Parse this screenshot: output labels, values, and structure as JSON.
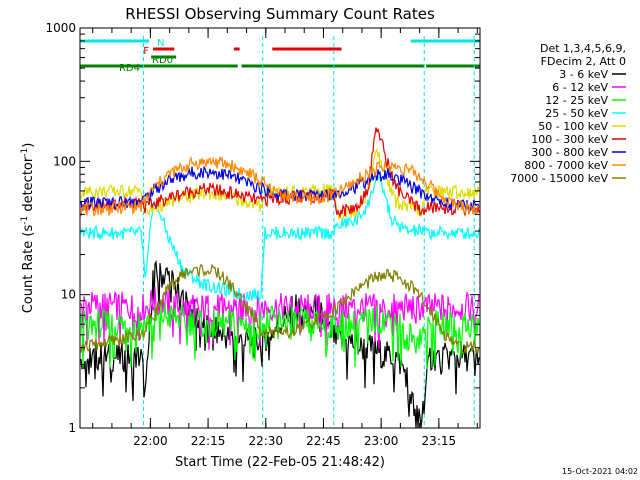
{
  "chart_data": {
    "type": "line",
    "title": "RHESSI Observing Summary Count Rates",
    "xlabel": "Start Time (22-Feb-05 21:48:42)",
    "ylabel": "Count Rate (s⁻¹ detector⁻¹)",
    "ylabel_main": "Count Rate (s",
    "ylabel_exp1": "-1",
    "ylabel_mid": " detector",
    "ylabel_exp2": "-1",
    "ylabel_end": ")",
    "x_unit": "minutes after 21:48:42",
    "xlim": [
      -7,
      97
    ],
    "ylim": [
      1,
      1000
    ],
    "y_scale": "log",
    "x_ticks": [
      {
        "value": 11.3,
        "label": "22:00"
      },
      {
        "value": 26.3,
        "label": "22:15"
      },
      {
        "value": 41.3,
        "label": "22:30"
      },
      {
        "value": 56.3,
        "label": "22:45"
      },
      {
        "value": 71.3,
        "label": "23:00"
      },
      {
        "value": 86.3,
        "label": "23:15"
      }
    ],
    "y_ticks": [
      {
        "value": 1,
        "label": "1"
      },
      {
        "value": 10,
        "label": "10"
      },
      {
        "value": 100,
        "label": "100"
      },
      {
        "value": 1000,
        "label": "1000"
      }
    ],
    "legend_header": [
      "Det 1,3,4,5,6,9,",
      "FDecim 2, Att 0"
    ],
    "legend_position": "right",
    "timestamp": "15-Oct-2021 04:02",
    "flags": {
      "N": {
        "label": "N",
        "color": "#00e5e5",
        "segments": [
          [
            -7,
            11
          ],
          [
            79,
            97
          ]
        ]
      },
      "F": {
        "label": "F",
        "color": "#e60000",
        "segments": [
          [
            12,
            17.5
          ],
          [
            33,
            34.5
          ],
          [
            43,
            61
          ]
        ]
      },
      "RD0": {
        "label": "RD0",
        "color": "#008000",
        "segments": [
          [
            11.5,
            18
          ]
        ]
      },
      "RD4": {
        "label": "RD4",
        "color": "#008000",
        "segments": [
          [
            -7,
            9.5
          ],
          [
            9.5,
            34
          ],
          [
            35,
            59
          ],
          [
            59,
            82.5
          ],
          [
            83,
            97
          ]
        ]
      }
    },
    "gap_lines": [
      [
        -7,
        -7
      ],
      [
        9.5,
        9.5
      ],
      [
        40.5,
        40.5
      ],
      [
        59,
        59
      ],
      [
        82.5,
        82.5
      ],
      [
        95.5,
        95.5
      ]
    ],
    "series": [
      {
        "name": "3 - 6 keV",
        "color": "#000000",
        "values": [
          [
            -7,
            3.4
          ],
          [
            9,
            3.4
          ],
          [
            10,
            1.6
          ],
          [
            12,
            14
          ],
          [
            16,
            14
          ],
          [
            20,
            9
          ],
          [
            25,
            6
          ],
          [
            30,
            5
          ],
          [
            35,
            4.5
          ],
          [
            40,
            4.5
          ],
          [
            44,
            5.5
          ],
          [
            48,
            8
          ],
          [
            52,
            7.5
          ],
          [
            55,
            8
          ],
          [
            57,
            5.5
          ],
          [
            60,
            4.5
          ],
          [
            63,
            4.5
          ],
          [
            66,
            4
          ],
          [
            69,
            4
          ],
          [
            72,
            3.5
          ],
          [
            75,
            3.5
          ],
          [
            78,
            2.5
          ],
          [
            80,
            1.3
          ],
          [
            82,
            1.3
          ],
          [
            84,
            3.4
          ],
          [
            97,
            3.4
          ]
        ]
      },
      {
        "name": "6 - 12 keV",
        "color": "#ff00ff",
        "values": [
          [
            -7,
            8.5
          ],
          [
            10,
            8
          ],
          [
            12,
            9
          ],
          [
            20,
            8
          ],
          [
            30,
            8
          ],
          [
            40,
            8
          ],
          [
            50,
            8
          ],
          [
            60,
            8
          ],
          [
            70,
            8
          ],
          [
            80,
            8
          ],
          [
            90,
            8
          ],
          [
            97,
            8
          ]
        ]
      },
      {
        "name": "12 - 25 keV",
        "color": "#00ff00",
        "values": [
          [
            -7,
            6
          ],
          [
            10,
            6
          ],
          [
            15,
            7
          ],
          [
            25,
            6
          ],
          [
            35,
            6
          ],
          [
            45,
            6.5
          ],
          [
            55,
            6
          ],
          [
            65,
            6
          ],
          [
            70,
            6.5
          ],
          [
            75,
            6.5
          ],
          [
            80,
            4.5
          ],
          [
            85,
            6
          ],
          [
            97,
            6
          ]
        ]
      },
      {
        "name": "25 - 50 keV",
        "color": "#00ffff",
        "values": [
          [
            -7,
            29
          ],
          [
            9,
            29
          ],
          [
            10,
            12
          ],
          [
            12,
            50
          ],
          [
            14,
            40
          ],
          [
            16,
            27
          ],
          [
            20,
            15
          ],
          [
            25,
            12
          ],
          [
            30,
            11
          ],
          [
            35,
            10
          ],
          [
            40,
            10
          ],
          [
            41,
            29
          ],
          [
            50,
            29
          ],
          [
            59,
            29
          ],
          [
            60,
            33
          ],
          [
            65,
            36
          ],
          [
            68,
            48
          ],
          [
            70,
            75
          ],
          [
            72,
            60
          ],
          [
            74,
            36
          ],
          [
            78,
            30
          ],
          [
            82,
            30
          ],
          [
            83,
            29
          ],
          [
            97,
            29
          ]
        ]
      },
      {
        "name": "50 - 100 keV",
        "color": "#dddd00",
        "values": [
          [
            -7,
            59
          ],
          [
            9,
            60
          ],
          [
            10,
            41
          ],
          [
            15,
            48
          ],
          [
            20,
            54
          ],
          [
            26,
            58
          ],
          [
            32,
            54
          ],
          [
            38,
            48
          ],
          [
            40,
            45
          ],
          [
            41,
            60
          ],
          [
            50,
            58
          ],
          [
            59,
            62
          ],
          [
            60,
            40
          ],
          [
            65,
            43
          ],
          [
            68,
            60
          ],
          [
            70,
            120
          ],
          [
            72,
            85
          ],
          [
            75,
            50
          ],
          [
            80,
            43
          ],
          [
            82,
            42
          ],
          [
            83,
            60
          ],
          [
            97,
            58
          ]
        ]
      },
      {
        "name": "100 - 300 keV",
        "color": "#e60000",
        "values": [
          [
            -7,
            46
          ],
          [
            9,
            50
          ],
          [
            10,
            45
          ],
          [
            15,
            52
          ],
          [
            20,
            58
          ],
          [
            26,
            62
          ],
          [
            32,
            58
          ],
          [
            38,
            52
          ],
          [
            40,
            50
          ],
          [
            41,
            52
          ],
          [
            59,
            56
          ],
          [
            60,
            42
          ],
          [
            65,
            45
          ],
          [
            68,
            65
          ],
          [
            70,
            190
          ],
          [
            72,
            120
          ],
          [
            75,
            65
          ],
          [
            78,
            52
          ],
          [
            82,
            42
          ],
          [
            83,
            45
          ],
          [
            97,
            44
          ]
        ]
      },
      {
        "name": "300 - 800 keV",
        "color": "#0000e6",
        "values": [
          [
            -7,
            48
          ],
          [
            9,
            50
          ],
          [
            12,
            60
          ],
          [
            16,
            72
          ],
          [
            22,
            82
          ],
          [
            27,
            84
          ],
          [
            32,
            78
          ],
          [
            38,
            66
          ],
          [
            43,
            58
          ],
          [
            50,
            55
          ],
          [
            56,
            56
          ],
          [
            60,
            58
          ],
          [
            65,
            65
          ],
          [
            70,
            78
          ],
          [
            73,
            80
          ],
          [
            77,
            70
          ],
          [
            82,
            58
          ],
          [
            86,
            50
          ],
          [
            90,
            48
          ],
          [
            97,
            46
          ]
        ]
      },
      {
        "name": "800 - 7000 keV",
        "color": "#ff8800",
        "values": [
          [
            -7,
            43
          ],
          [
            9,
            46
          ],
          [
            12,
            62
          ],
          [
            16,
            80
          ],
          [
            22,
            96
          ],
          [
            27,
            100
          ],
          [
            32,
            94
          ],
          [
            38,
            78
          ],
          [
            43,
            60
          ],
          [
            50,
            52
          ],
          [
            56,
            53
          ],
          [
            60,
            58
          ],
          [
            65,
            72
          ],
          [
            70,
            88
          ],
          [
            74,
            92
          ],
          [
            78,
            88
          ],
          [
            82,
            74
          ],
          [
            86,
            58
          ],
          [
            90,
            48
          ],
          [
            97,
            43
          ]
        ]
      },
      {
        "name": "7000 - 15000 keV",
        "color": "#808000",
        "values": [
          [
            -7,
            4
          ],
          [
            9,
            5
          ],
          [
            12,
            7
          ],
          [
            16,
            11
          ],
          [
            20,
            14.5
          ],
          [
            25,
            15.5
          ],
          [
            29,
            14.5
          ],
          [
            33,
            11
          ],
          [
            37,
            7.5
          ],
          [
            40,
            5.5
          ],
          [
            45,
            5
          ],
          [
            50,
            5.5
          ],
          [
            55,
            6.5
          ],
          [
            60,
            8
          ],
          [
            65,
            11
          ],
          [
            70,
            13.5
          ],
          [
            73,
            14
          ],
          [
            77,
            13
          ],
          [
            81,
            10
          ],
          [
            85,
            7
          ],
          [
            88,
            5
          ],
          [
            92,
            4
          ],
          [
            97,
            4
          ]
        ]
      }
    ]
  }
}
